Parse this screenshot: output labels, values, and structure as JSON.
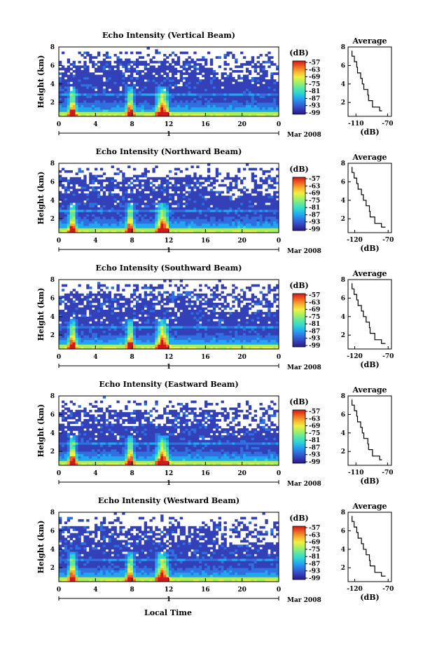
{
  "chart_data": [
    {
      "type": "heatmap",
      "title": "Echo Intensity (Vertical Beam)",
      "ylabel": "Height (km)",
      "xticks": [
        "0",
        "4",
        "8",
        "12",
        "16",
        "20",
        "0"
      ],
      "yticks": [
        "2",
        "4",
        "6",
        "8"
      ],
      "day_label": "1",
      "month_label": "Mar 2008",
      "xlim": [
        0,
        24
      ],
      "ylim": [
        0.5,
        8
      ],
      "colorbar": {
        "label": "(dB)",
        "ticks": [
          "-57",
          "-63",
          "-69",
          "-75",
          "-81",
          "-87",
          "-93",
          "-99"
        ]
      },
      "average": {
        "title": "Average",
        "xlabel": "(dB)",
        "xticks": [
          "-110",
          "-70"
        ],
        "yticks": [
          "2",
          "4",
          "6",
          "8"
        ],
        "xlim": [
          -120,
          -65
        ],
        "profile": [
          [
            -77,
            1.1
          ],
          [
            -80,
            1.5
          ],
          [
            -89,
            2.2
          ],
          [
            -94,
            2.8
          ],
          [
            -95,
            3.4
          ],
          [
            -100,
            4.0
          ],
          [
            -102,
            4.6
          ],
          [
            -104,
            5.2
          ],
          [
            -108,
            5.8
          ],
          [
            -109,
            6.4
          ],
          [
            -112,
            7.0
          ],
          [
            -115,
            7.6
          ]
        ]
      }
    },
    {
      "type": "heatmap",
      "title": "Echo Intensity (Northward Beam)",
      "ylabel": "Height (km)",
      "xticks": [
        "0",
        "4",
        "8",
        "12",
        "16",
        "20",
        "0"
      ],
      "yticks": [
        "2",
        "4",
        "6",
        "8"
      ],
      "day_label": "1",
      "month_label": "Mar 2008",
      "xlim": [
        0,
        24
      ],
      "ylim": [
        0.5,
        8
      ],
      "colorbar": {
        "label": "(dB)",
        "ticks": [
          "-57",
          "-63",
          "-69",
          "-75",
          "-81",
          "-87",
          "-93",
          "-99"
        ]
      },
      "average": {
        "title": "Average",
        "xlabel": "(dB)",
        "xticks": [
          "-120",
          "-70"
        ],
        "yticks": [
          "2",
          "4",
          "6",
          "8"
        ],
        "xlim": [
          -130,
          -65
        ],
        "profile": [
          [
            -74,
            1.1
          ],
          [
            -80,
            1.5
          ],
          [
            -90,
            2.2
          ],
          [
            -97,
            2.8
          ],
          [
            -98,
            3.4
          ],
          [
            -103,
            4.0
          ],
          [
            -107,
            4.6
          ],
          [
            -110,
            5.2
          ],
          [
            -115,
            5.8
          ],
          [
            -117,
            6.4
          ],
          [
            -121,
            7.0
          ],
          [
            -124,
            7.6
          ]
        ]
      }
    },
    {
      "type": "heatmap",
      "title": "Echo Intensity (Southward Beam)",
      "ylabel": "Height (km)",
      "xticks": [
        "0",
        "4",
        "8",
        "12",
        "16",
        "20",
        "0"
      ],
      "yticks": [
        "2",
        "4",
        "6",
        "8"
      ],
      "day_label": "1",
      "month_label": "Mar 2008",
      "xlim": [
        0,
        24
      ],
      "ylim": [
        0.5,
        8
      ],
      "colorbar": {
        "label": "(dB)",
        "ticks": [
          "-57",
          "-63",
          "-69",
          "-75",
          "-81",
          "-87",
          "-93",
          "-99"
        ]
      },
      "average": {
        "title": "Average",
        "xlabel": "(dB)",
        "xticks": [
          "-120",
          "-70"
        ],
        "yticks": [
          "2",
          "4",
          "6",
          "8"
        ],
        "xlim": [
          -130,
          -65
        ],
        "profile": [
          [
            -74,
            1.1
          ],
          [
            -80,
            1.5
          ],
          [
            -90,
            2.2
          ],
          [
            -97,
            2.8
          ],
          [
            -98,
            3.4
          ],
          [
            -103,
            4.0
          ],
          [
            -107,
            4.6
          ],
          [
            -110,
            5.2
          ],
          [
            -115,
            5.8
          ],
          [
            -117,
            6.4
          ],
          [
            -121,
            7.0
          ],
          [
            -124,
            7.6
          ]
        ]
      }
    },
    {
      "type": "heatmap",
      "title": "Echo Intensity (Eastward Beam)",
      "ylabel": "Height (km)",
      "xticks": [
        "0",
        "4",
        "8",
        "12",
        "16",
        "20",
        "0"
      ],
      "yticks": [
        "2",
        "4",
        "6",
        "8"
      ],
      "day_label": "1",
      "month_label": "Mar 2008",
      "xlim": [
        0,
        24
      ],
      "ylim": [
        0.5,
        8
      ],
      "colorbar": {
        "label": "(dB)",
        "ticks": [
          "-57",
          "-63",
          "-69",
          "-75",
          "-81",
          "-87",
          "-93",
          "-99"
        ]
      },
      "average": {
        "title": "Average",
        "xlabel": "(dB)",
        "xticks": [
          "-110",
          "-70"
        ],
        "yticks": [
          "2",
          "4",
          "6",
          "8"
        ],
        "xlim": [
          -120,
          -65
        ],
        "profile": [
          [
            -77,
            1.1
          ],
          [
            -80,
            1.5
          ],
          [
            -89,
            2.2
          ],
          [
            -94,
            2.8
          ],
          [
            -95,
            3.4
          ],
          [
            -100,
            4.0
          ],
          [
            -102,
            4.6
          ],
          [
            -104,
            5.2
          ],
          [
            -108,
            5.8
          ],
          [
            -109,
            6.4
          ],
          [
            -112,
            7.0
          ],
          [
            -115,
            7.6
          ]
        ]
      }
    },
    {
      "type": "heatmap",
      "title": "Echo Intensity (Westward Beam)",
      "ylabel": "Height (km)",
      "xticks": [
        "0",
        "4",
        "8",
        "12",
        "16",
        "20",
        "0"
      ],
      "yticks": [
        "2",
        "4",
        "6",
        "8"
      ],
      "day_label": "1",
      "month_label": "Mar 2008",
      "xlim": [
        0,
        24
      ],
      "ylim": [
        0.5,
        8
      ],
      "colorbar": {
        "label": "(dB)",
        "ticks": [
          "-57",
          "-63",
          "-69",
          "-75",
          "-81",
          "-87",
          "-93",
          "-99"
        ]
      },
      "average": {
        "title": "Average",
        "xlabel": "(dB)",
        "xticks": [
          "-120",
          "-70"
        ],
        "yticks": [
          "2",
          "4",
          "6",
          "8"
        ],
        "xlim": [
          -130,
          -65
        ],
        "profile": [
          [
            -74,
            1.1
          ],
          [
            -80,
            1.5
          ],
          [
            -90,
            2.2
          ],
          [
            -97,
            2.8
          ],
          [
            -98,
            3.4
          ],
          [
            -103,
            4.0
          ],
          [
            -107,
            4.6
          ],
          [
            -110,
            5.2
          ],
          [
            -115,
            5.8
          ],
          [
            -117,
            6.4
          ],
          [
            -121,
            7.0
          ],
          [
            -124,
            7.6
          ]
        ]
      }
    }
  ],
  "figure": {
    "xlabel": "Local Time",
    "colormap": [
      "#2a1a8c",
      "#3340b8",
      "#2f6fe0",
      "#22a6f0",
      "#2fd6d0",
      "#5ee8a0",
      "#a8f060",
      "#f0f040",
      "#f8b030",
      "#f06020",
      "#d01818"
    ]
  }
}
